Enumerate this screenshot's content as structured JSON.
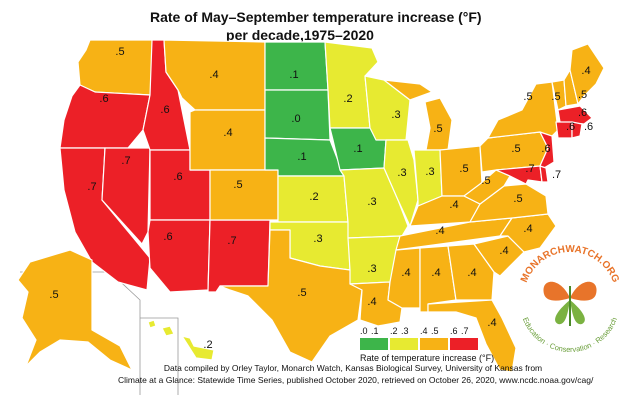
{
  "title": {
    "line1": "Rate of May–September temperature increase (°F)",
    "line2": "per decade,1975–2020"
  },
  "colors": {
    "range_0_1": "#3db54a",
    "range_2_3": "#e7ea31",
    "range_4_5": "#f7b215",
    "range_6_7": "#ec2027"
  },
  "legend": {
    "ticks": [
      ".0",
      ".1",
      ".2",
      ".3",
      ".4",
      ".5",
      ".6",
      ".7"
    ],
    "label": "Rate of temperature increase (°F)"
  },
  "states": {
    "WA": ".5",
    "OR": ".6",
    "ID": ".6",
    "MT": ".4",
    "ND": ".1",
    "MN": ".2",
    "WI": ".3",
    "MI": ".5",
    "NY": ".5",
    "VT": ".5",
    "NH": ".5",
    "ME": ".4",
    "MA": ".6",
    "RI": ".6",
    "CT": ".6",
    "NJ": ".6",
    "DE": ".7",
    "MD": ".7",
    "PA": ".5",
    "OH": ".5",
    "IN": ".3",
    "IL": ".3",
    "IA": ".1",
    "SD": ".0",
    "NE": ".1",
    "WY": ".4",
    "NV": ".7",
    "UT": ".6",
    "CO": ".5",
    "KS": ".2",
    "MO": ".3",
    "KY": ".4",
    "WV": ".5",
    "VA": ".5",
    "NC": ".4",
    "TN": ".4",
    "CA": ".7",
    "AZ": ".6",
    "NM": ".7",
    "OK": ".3",
    "AR": ".3",
    "TX": ".5",
    "LA": ".4",
    "MS": ".4",
    "AL": ".4",
    "GA": ".4",
    "SC": ".4",
    "FL": ".4",
    "AK": ".5",
    "HI": ".2"
  },
  "credit": {
    "line1": "Data compiled by Orley Taylor, Monarch Watch, Kansas Biological Survey, University of Kansas from",
    "line2": "Climate at a Glance: Statewide Time Series, published October 2020, retrieved on October 26, 2020, www.ncdc.noaa.gov/cag/"
  },
  "logo": {
    "name": "MONARCHWATCH.ORG",
    "tagline": "Education · Conservation · Research",
    "icon": "monarch-butterfly-icon"
  }
}
